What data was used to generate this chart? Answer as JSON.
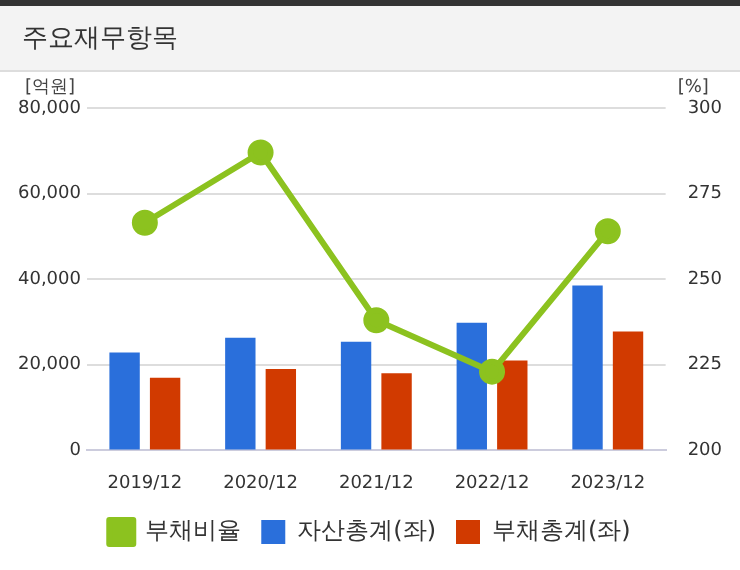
{
  "chart_data": {
    "type": "bar",
    "title": "주요재무항목",
    "ylabel": "[억원]",
    "y2label": "[%]",
    "categories": [
      "2019/12",
      "2020/12",
      "2021/12",
      "2022/12",
      "2023/12"
    ],
    "series": [
      {
        "name": "자산총계(좌)",
        "color": "#2a6fdb",
        "values": [
          22900,
          26300,
          25400,
          29800,
          38500
        ]
      },
      {
        "name": "부채총계(좌)",
        "color": "#d13a00",
        "values": [
          17000,
          19000,
          18000,
          21000,
          27800
        ]
      },
      {
        "name": "부채비율",
        "type": "line",
        "axis": "y2",
        "color": "#8cc21f",
        "marker": "circle",
        "values": [
          266.5,
          287,
          238,
          223,
          264
        ]
      }
    ],
    "ylim": [
      0,
      80000
    ],
    "yticks": [
      {
        "value": 0,
        "label": "0"
      },
      {
        "value": 20000,
        "label": "20,000"
      },
      {
        "value": 40000,
        "label": "40,000"
      },
      {
        "value": 60000,
        "label": "60,000"
      },
      {
        "value": 80000,
        "label": "80,000"
      }
    ],
    "y2lim": [
      200,
      300
    ],
    "y2ticks": [
      200,
      225,
      250,
      275,
      300
    ],
    "grid": "y",
    "legend": "bottom"
  }
}
